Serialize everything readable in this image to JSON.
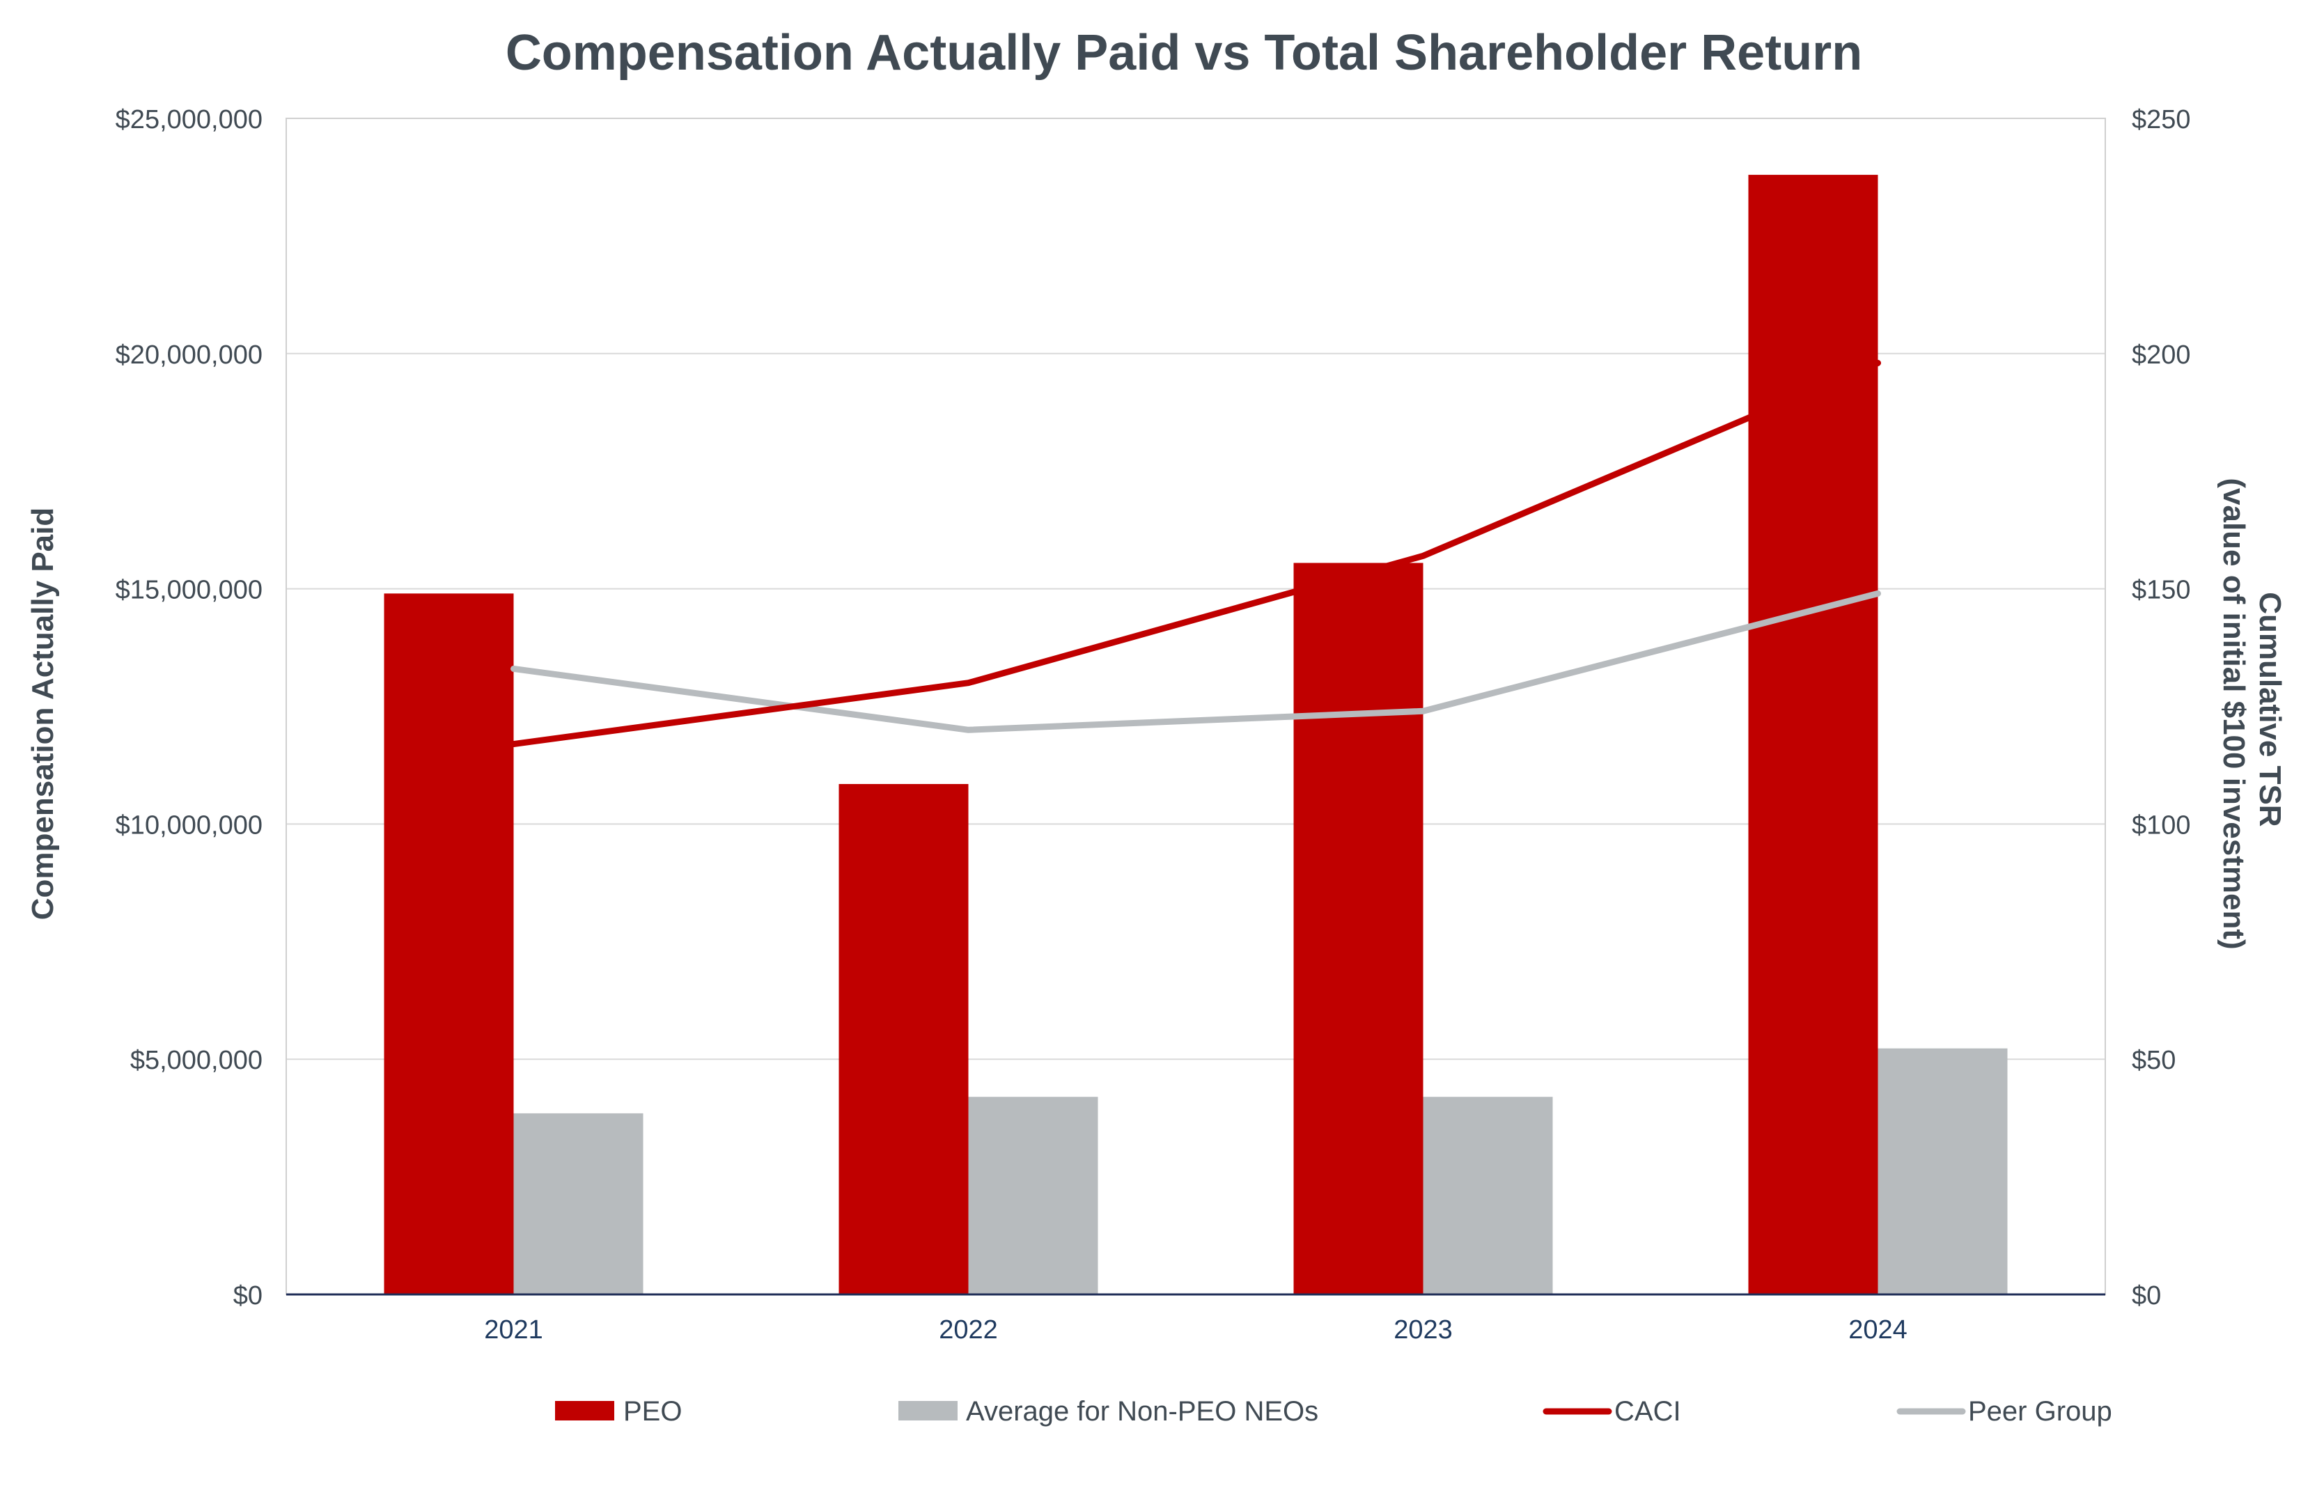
{
  "chart_data": {
    "type": "bar",
    "title": "Compensation Actually Paid vs Total Shareholder Return",
    "categories": [
      "2021",
      "2022",
      "2023",
      "2024"
    ],
    "ylabel": "Compensation Actually Paid",
    "y2label": [
      "Cumulative TSR",
      "(value of initial $100 investment)"
    ],
    "ylim": [
      0,
      25000000
    ],
    "y2lim": [
      0,
      250
    ],
    "yticks": [
      "$0",
      "$5,000,000",
      "$10,000,000",
      "$15,000,000",
      "$20,000,000",
      "$25,000,000"
    ],
    "y2ticks": [
      "$0",
      "$50",
      "$100",
      "$150",
      "$200",
      "$250"
    ],
    "grid": true,
    "legend_position": "bottom",
    "series": [
      {
        "name": "PEO",
        "type": "bar",
        "axis": "left",
        "color": "#c00000",
        "values": [
          14900000,
          10850000,
          15550000,
          23800000
        ]
      },
      {
        "name": "Average for Non-PEO NEOs",
        "type": "bar",
        "axis": "left",
        "color": "#b7bbbe",
        "values": [
          3850000,
          4200000,
          4200000,
          5230000
        ]
      },
      {
        "name": "CACI",
        "type": "line",
        "axis": "right",
        "color": "#c00000",
        "values": [
          117,
          130,
          157,
          198
        ]
      },
      {
        "name": "Peer Group",
        "type": "line",
        "axis": "right",
        "color": "#b7bbbe",
        "values": [
          133,
          120,
          124,
          149
        ]
      }
    ]
  }
}
